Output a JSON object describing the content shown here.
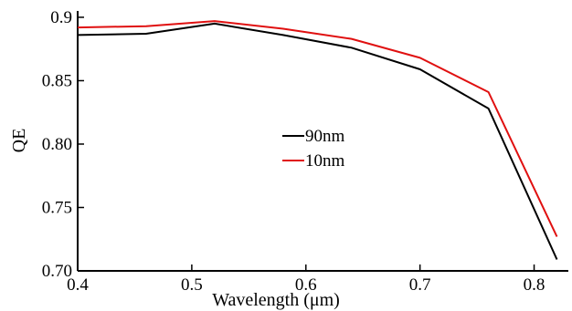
{
  "chart_data": {
    "type": "line",
    "title": "",
    "xlabel": "Wavelength (μm)",
    "ylabel": "QE",
    "xlim": [
      0.4,
      0.83
    ],
    "ylim": [
      0.7,
      0.905
    ],
    "x_ticks": [
      0.4,
      0.5,
      0.6,
      0.7,
      0.8
    ],
    "x_tick_labels": [
      "0.4",
      "0.5",
      "0.6",
      "0.7",
      "0.8"
    ],
    "y_ticks": [
      0.7,
      0.75,
      0.8,
      0.85,
      0.9
    ],
    "y_tick_labels": [
      "0.70",
      "0.75",
      "0.80",
      "0.85",
      "0.9"
    ],
    "grid": false,
    "legend_position": "center",
    "series": [
      {
        "name": "90nm",
        "color": "#000000",
        "x": [
          0.4,
          0.46,
          0.52,
          0.58,
          0.64,
          0.7,
          0.76,
          0.82
        ],
        "y": [
          0.886,
          0.887,
          0.895,
          0.886,
          0.876,
          0.859,
          0.828,
          0.709
        ]
      },
      {
        "name": "10nm",
        "color": "#e01010",
        "x": [
          0.4,
          0.46,
          0.52,
          0.58,
          0.64,
          0.7,
          0.76,
          0.82
        ],
        "y": [
          0.892,
          0.893,
          0.897,
          0.891,
          0.883,
          0.868,
          0.841,
          0.727
        ]
      }
    ]
  }
}
